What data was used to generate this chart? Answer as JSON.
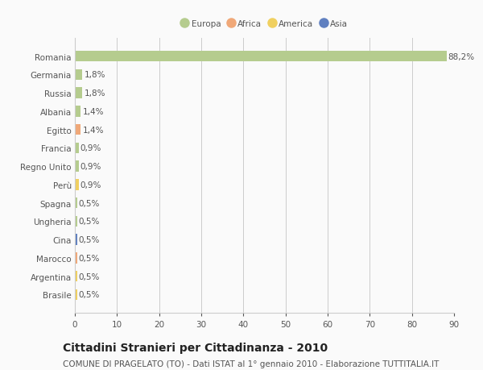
{
  "categories": [
    "Romania",
    "Germania",
    "Russia",
    "Albania",
    "Egitto",
    "Francia",
    "Regno Unito",
    "Perù",
    "Spagna",
    "Ungheria",
    "Cina",
    "Marocco",
    "Argentina",
    "Brasile"
  ],
  "values": [
    88.2,
    1.8,
    1.8,
    1.4,
    1.4,
    0.9,
    0.9,
    0.9,
    0.5,
    0.5,
    0.5,
    0.5,
    0.5,
    0.5
  ],
  "labels": [
    "88,2%",
    "1,8%",
    "1,8%",
    "1,4%",
    "1,4%",
    "0,9%",
    "0,9%",
    "0,9%",
    "0,5%",
    "0,5%",
    "0,5%",
    "0,5%",
    "0,5%",
    "0,5%"
  ],
  "continents": [
    "Europa",
    "Europa",
    "Europa",
    "Europa",
    "Africa",
    "Europa",
    "Europa",
    "America",
    "Europa",
    "Europa",
    "Asia",
    "Africa",
    "America",
    "America"
  ],
  "continent_colors": {
    "Europa": "#b5cc8e",
    "Africa": "#f0a878",
    "America": "#f0d060",
    "Asia": "#6080c0"
  },
  "xlim": [
    0,
    90
  ],
  "xticks": [
    0,
    10,
    20,
    30,
    40,
    50,
    60,
    70,
    80,
    90
  ],
  "title": "Cittadini Stranieri per Cittadinanza - 2010",
  "subtitle": "COMUNE DI PRAGELATO (TO) - Dati ISTAT al 1° gennaio 2010 - Elaborazione TUTTITALIA.IT",
  "background_color": "#fafafa",
  "grid_color": "#cccccc",
  "bar_height": 0.6,
  "text_color": "#555555",
  "title_fontsize": 10,
  "subtitle_fontsize": 7.5,
  "tick_fontsize": 7.5,
  "label_fontsize": 7.5,
  "legend_entries": [
    "Europa",
    "Africa",
    "America",
    "Asia"
  ]
}
